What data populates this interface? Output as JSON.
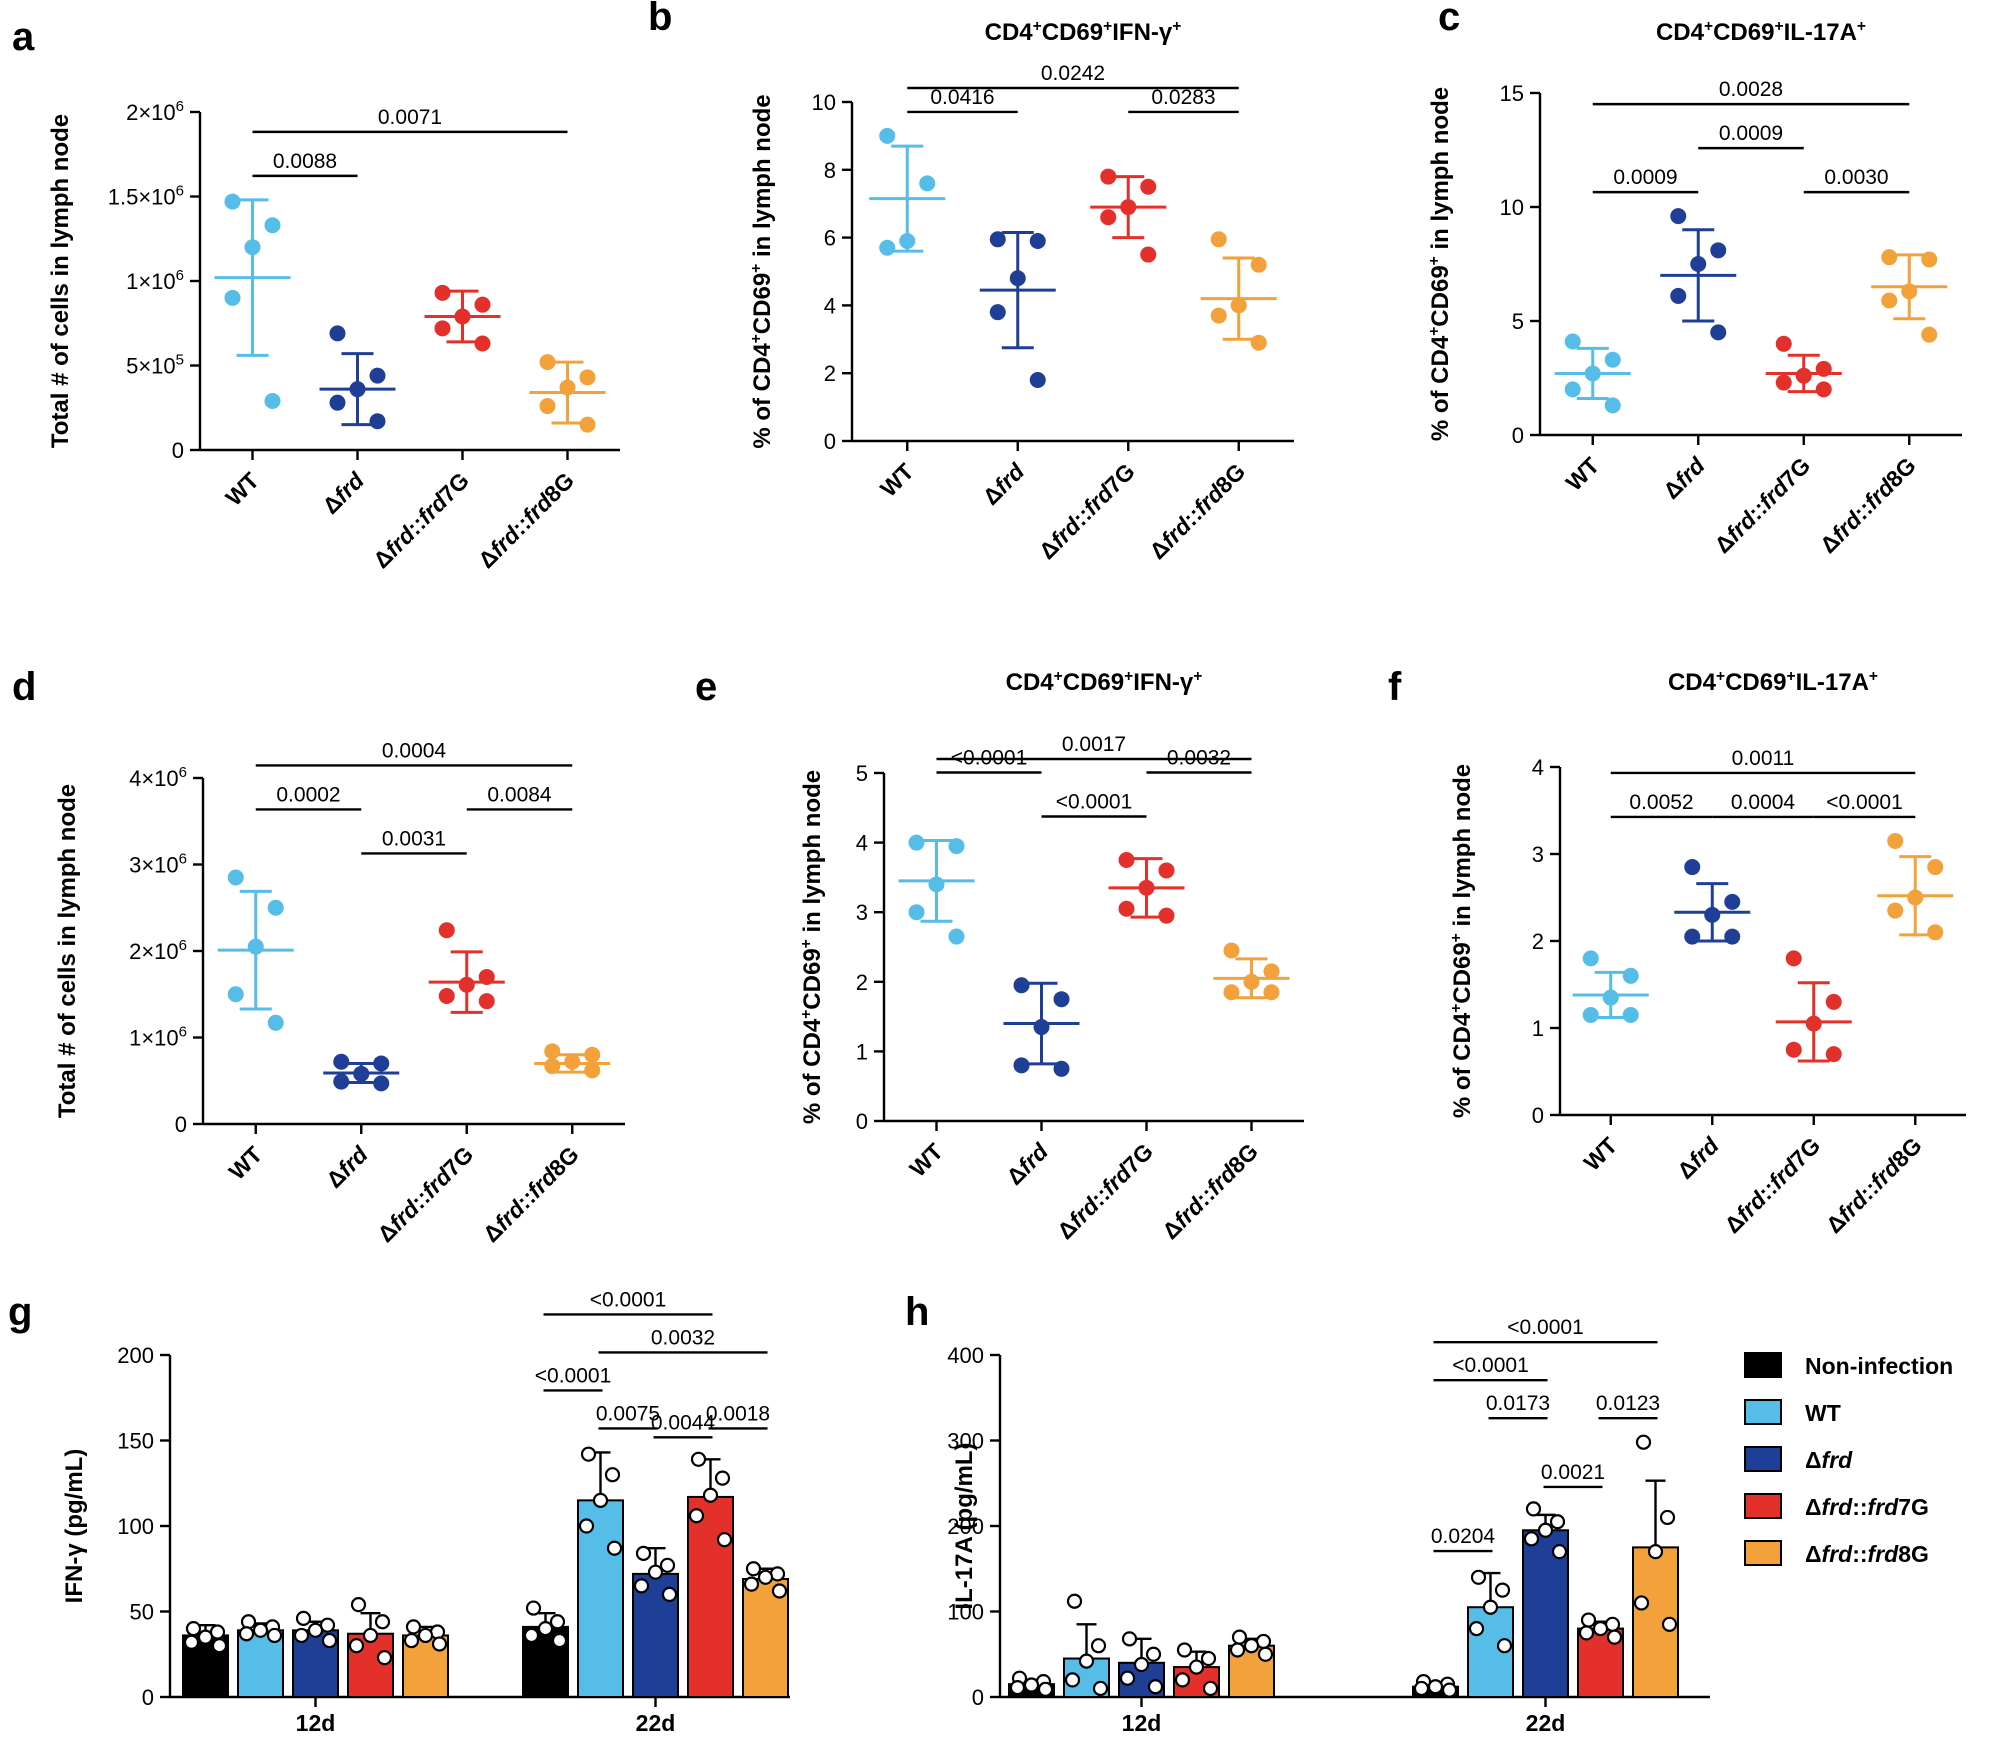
{
  "colors": {
    "WT": "#56bce8",
    "frd": "#1f3f96",
    "frd7G": "#e3302a",
    "frd8G": "#f3a23b",
    "Non-infection": "#000000"
  },
  "chart_data": [
    {
      "id": "a",
      "type": "scatter",
      "panel_label": "a",
      "title": "",
      "ylabel": "Total # of cells in lymph node",
      "ylim": [
        0,
        2000000
      ],
      "yticks": [
        0,
        500000,
        1000000,
        1500000,
        2000000
      ],
      "ytick_labels": [
        "0",
        "5×10⁵",
        "1×10⁶",
        "1.5×10⁶",
        "2×10⁶"
      ],
      "categories": [
        "WT",
        "Δfrd",
        "Δfrd::frd7G",
        "Δfrd::frd8G"
      ],
      "series": [
        {
          "name": "WT",
          "color": "#56bce8",
          "mean": 1020000,
          "sd": 460000,
          "points": [
            1470000,
            1330000,
            1200000,
            900000,
            290000
          ]
        },
        {
          "name": "Δfrd",
          "color": "#1f3f96",
          "mean": 360000,
          "sd": 210000,
          "points": [
            690000,
            440000,
            360000,
            280000,
            170000
          ]
        },
        {
          "name": "Δfrd::frd7G",
          "color": "#e3302a",
          "mean": 790000,
          "sd": 150000,
          "points": [
            930000,
            860000,
            790000,
            720000,
            630000
          ]
        },
        {
          "name": "Δfrd::frd8G",
          "color": "#f3a23b",
          "mean": 340000,
          "sd": 180000,
          "points": [
            520000,
            430000,
            370000,
            260000,
            150000
          ]
        }
      ],
      "comparisons": [
        {
          "from": 0,
          "to": 1,
          "p": "0.0088",
          "level": 1
        },
        {
          "from": 0,
          "to": 3,
          "p": "0.0071",
          "level": 2
        }
      ]
    },
    {
      "id": "b",
      "type": "scatter",
      "panel_label": "b",
      "title": "CD4⁺CD69⁺IFN-γ⁺",
      "ylabel": "% of CD4⁺CD69⁺ in lymph node",
      "ylim": [
        0,
        10
      ],
      "yticks": [
        0,
        2,
        4,
        6,
        8,
        10
      ],
      "ytick_labels": [
        "0",
        "2",
        "4",
        "6",
        "8",
        "10"
      ],
      "categories": [
        "WT",
        "Δfrd",
        "Δfrd::frd7G",
        "Δfrd::frd8G"
      ],
      "series": [
        {
          "name": "WT",
          "color": "#56bce8",
          "mean": 7.15,
          "sd": 1.55,
          "points": [
            9.0,
            7.6,
            5.9,
            5.7
          ]
        },
        {
          "name": "Δfrd",
          "color": "#1f3f96",
          "mean": 4.45,
          "sd": 1.7,
          "points": [
            5.95,
            5.9,
            4.8,
            3.8,
            1.8
          ]
        },
        {
          "name": "Δfrd::frd7G",
          "color": "#e3302a",
          "mean": 6.9,
          "sd": 0.9,
          "points": [
            7.8,
            7.5,
            6.9,
            6.6,
            5.5
          ]
        },
        {
          "name": "Δfrd::frd8G",
          "color": "#f3a23b",
          "mean": 4.2,
          "sd": 1.2,
          "points": [
            5.95,
            5.2,
            4.0,
            3.7,
            2.9
          ]
        }
      ],
      "comparisons": [
        {
          "from": 0,
          "to": 1,
          "p": "0.0416",
          "level": 1
        },
        {
          "from": 2,
          "to": 3,
          "p": "0.0283",
          "level": 1
        },
        {
          "from": 0,
          "to": 3,
          "p": "0.0242",
          "level": 2
        }
      ]
    },
    {
      "id": "c",
      "type": "scatter",
      "panel_label": "c",
      "title": "CD4⁺CD69⁺IL-17A⁺",
      "ylabel": "% of CD4⁺CD69⁺ in lymph node",
      "ylim": [
        0,
        15
      ],
      "yticks": [
        0,
        5,
        10,
        15
      ],
      "ytick_labels": [
        "0",
        "5",
        "10",
        "15"
      ],
      "categories": [
        "WT",
        "Δfrd",
        "Δfrd::frd7G",
        "Δfrd::frd8G"
      ],
      "series": [
        {
          "name": "WT",
          "color": "#56bce8",
          "mean": 2.7,
          "sd": 1.1,
          "points": [
            4.1,
            3.3,
            2.7,
            2.0,
            1.3
          ]
        },
        {
          "name": "Δfrd",
          "color": "#1f3f96",
          "mean": 7.0,
          "sd": 2.0,
          "points": [
            9.6,
            8.1,
            7.5,
            6.1,
            4.5
          ]
        },
        {
          "name": "Δfrd::frd7G",
          "color": "#e3302a",
          "mean": 2.7,
          "sd": 0.8,
          "points": [
            4.0,
            2.9,
            2.6,
            2.3,
            2.0
          ]
        },
        {
          "name": "Δfrd::frd8G",
          "color": "#f3a23b",
          "mean": 6.5,
          "sd": 1.4,
          "points": [
            7.8,
            7.7,
            6.3,
            5.9,
            4.4
          ]
        }
      ],
      "comparisons": [
        {
          "from": 0,
          "to": 1,
          "p": "0.0009",
          "level": 1
        },
        {
          "from": 1,
          "to": 2,
          "p": "0.0009",
          "level": 2
        },
        {
          "from": 2,
          "to": 3,
          "p": "0.0030",
          "level": 1
        },
        {
          "from": 0,
          "to": 3,
          "p": "0.0028",
          "level": 3
        }
      ]
    },
    {
      "id": "d",
      "type": "scatter",
      "panel_label": "d",
      "title": "",
      "ylabel": "Total # of cells in lymph node",
      "ylim": [
        0,
        4000000
      ],
      "yticks": [
        0,
        1000000,
        2000000,
        3000000,
        4000000
      ],
      "ytick_labels": [
        "0",
        "1×10⁶",
        "2×10⁶",
        "3×10⁶",
        "4×10⁶"
      ],
      "categories": [
        "WT",
        "Δfrd",
        "Δfrd::frd7G",
        "Δfrd::frd8G"
      ],
      "series": [
        {
          "name": "WT",
          "color": "#56bce8",
          "mean": 2010000,
          "sd": 680000,
          "points": [
            2850000,
            2500000,
            2050000,
            1500000,
            1170000
          ]
        },
        {
          "name": "Δfrd",
          "color": "#1f3f96",
          "mean": 590000,
          "sd": 110000,
          "points": [
            720000,
            700000,
            580000,
            490000,
            470000
          ]
        },
        {
          "name": "Δfrd::frd7G",
          "color": "#e3302a",
          "mean": 1640000,
          "sd": 350000,
          "points": [
            2240000,
            1700000,
            1610000,
            1480000,
            1420000
          ]
        },
        {
          "name": "Δfrd::frd8G",
          "color": "#f3a23b",
          "mean": 700000,
          "sd": 100000,
          "points": [
            840000,
            800000,
            720000,
            670000,
            620000
          ]
        }
      ],
      "comparisons": [
        {
          "from": 0,
          "to": 1,
          "p": "0.0002",
          "level": 2
        },
        {
          "from": 1,
          "to": 2,
          "p": "0.0031",
          "level": 1
        },
        {
          "from": 2,
          "to": 3,
          "p": "0.0084",
          "level": 2
        },
        {
          "from": 0,
          "to": 3,
          "p": "0.0004",
          "level": 3
        }
      ]
    },
    {
      "id": "e",
      "type": "scatter",
      "panel_label": "e",
      "title": "CD4⁺CD69⁺IFN-γ⁺",
      "ylabel": "% of CD4⁺CD69⁺ in lymph node",
      "ylim": [
        0,
        5
      ],
      "yticks": [
        0,
        1,
        2,
        3,
        4,
        5
      ],
      "ytick_labels": [
        "0",
        "1",
        "2",
        "3",
        "4",
        "5"
      ],
      "categories": [
        "WT",
        "Δfrd",
        "Δfrd::frd7G",
        "Δfrd::frd8G"
      ],
      "series": [
        {
          "name": "WT",
          "color": "#56bce8",
          "mean": 3.45,
          "sd": 0.58,
          "points": [
            4.0,
            3.95,
            3.4,
            3.0,
            2.65
          ]
        },
        {
          "name": "Δfrd",
          "color": "#1f3f96",
          "mean": 1.4,
          "sd": 0.58,
          "points": [
            1.95,
            1.75,
            1.35,
            0.8,
            0.75
          ]
        },
        {
          "name": "Δfrd::frd7G",
          "color": "#e3302a",
          "mean": 3.35,
          "sd": 0.42,
          "points": [
            3.75,
            3.6,
            3.35,
            3.05,
            2.95
          ]
        },
        {
          "name": "Δfrd::frd8G",
          "color": "#f3a23b",
          "mean": 2.05,
          "sd": 0.28,
          "points": [
            2.45,
            2.15,
            2.0,
            1.85,
            1.85
          ]
        }
      ],
      "comparisons": [
        {
          "from": 0,
          "to": 1,
          "p": "<0.0001",
          "level": 2
        },
        {
          "from": 1,
          "to": 2,
          "p": "<0.0001",
          "level": 1
        },
        {
          "from": 2,
          "to": 3,
          "p": "0.0032",
          "level": 2
        },
        {
          "from": 0,
          "to": 3,
          "p": "0.0017",
          "level": 3
        }
      ]
    },
    {
      "id": "f",
      "type": "scatter",
      "panel_label": "f",
      "title": "CD4⁺CD69⁺IL-17A⁺",
      "ylabel": "% of CD4⁺CD69⁺ in lymph node",
      "ylim": [
        0,
        4
      ],
      "yticks": [
        0,
        1,
        2,
        3,
        4
      ],
      "ytick_labels": [
        "0",
        "1",
        "2",
        "3",
        "4"
      ],
      "categories": [
        "WT",
        "Δfrd",
        "Δfrd::frd7G",
        "Δfrd::frd8G"
      ],
      "series": [
        {
          "name": "WT",
          "color": "#56bce8",
          "mean": 1.38,
          "sd": 0.26,
          "points": [
            1.8,
            1.6,
            1.35,
            1.15,
            1.15
          ]
        },
        {
          "name": "Δfrd",
          "color": "#1f3f96",
          "mean": 2.33,
          "sd": 0.33,
          "points": [
            2.85,
            2.45,
            2.3,
            2.05,
            2.05
          ]
        },
        {
          "name": "Δfrd::frd7G",
          "color": "#e3302a",
          "mean": 1.07,
          "sd": 0.45,
          "points": [
            1.8,
            1.3,
            1.05,
            0.75,
            0.7
          ]
        },
        {
          "name": "Δfrd::frd8G",
          "color": "#f3a23b",
          "mean": 2.52,
          "sd": 0.45,
          "points": [
            3.15,
            2.85,
            2.5,
            2.35,
            2.1
          ]
        }
      ],
      "comparisons": [
        {
          "from": 0,
          "to": 1,
          "p": "0.0052",
          "level": 1
        },
        {
          "from": 1,
          "to": 2,
          "p": "0.0004",
          "level": 1
        },
        {
          "from": 2,
          "to": 3,
          "p": "<0.0001",
          "level": 1
        },
        {
          "from": 0,
          "to": 3,
          "p": "0.0011",
          "level": 2
        }
      ]
    },
    {
      "id": "g",
      "type": "bar",
      "panel_label": "g",
      "title": "",
      "ylabel": "IFN-γ (pg/mL)",
      "ylim": [
        0,
        200
      ],
      "yticks": [
        0,
        50,
        100,
        150,
        200
      ],
      "ytick_labels": [
        "0",
        "50",
        "100",
        "150",
        "200"
      ],
      "groups": [
        "12d",
        "22d"
      ],
      "series_names": [
        "Non-infection",
        "WT",
        "Δfrd",
        "Δfrd::frd7G",
        "Δfrd::frd8G"
      ],
      "colors": [
        "#000000",
        "#56bce8",
        "#1f3f96",
        "#e3302a",
        "#f3a23b"
      ],
      "bars": [
        [
          {
            "mean": 36,
            "sd": 6,
            "points": [
              40,
              38,
              35,
              32,
              30
            ]
          },
          {
            "mean": 39,
            "sd": 4,
            "points": [
              44,
              41,
              39,
              37,
              36
            ]
          },
          {
            "mean": 39,
            "sd": 5,
            "points": [
              46,
              42,
              39,
              36,
              33
            ]
          },
          {
            "mean": 37,
            "sd": 12,
            "points": [
              54,
              44,
              36,
              30,
              23
            ]
          },
          {
            "mean": 36,
            "sd": 5,
            "points": [
              41,
              38,
              36,
              33,
              31
            ]
          }
        ],
        [
          {
            "mean": 41,
            "sd": 8,
            "points": [
              52,
              44,
              40,
              36,
              33
            ]
          },
          {
            "mean": 115,
            "sd": 28,
            "points": [
              142,
              130,
              115,
              100,
              87
            ]
          },
          {
            "mean": 72,
            "sd": 15,
            "points": [
              84,
              77,
              73,
              65,
              60
            ]
          },
          {
            "mean": 117,
            "sd": 22,
            "points": [
              139,
              128,
              118,
              106,
              92
            ]
          },
          {
            "mean": 69,
            "sd": 6,
            "points": [
              75,
              72,
              70,
              66,
              62
            ]
          }
        ]
      ],
      "comparisons": [
        {
          "group": 1,
          "from": 0,
          "to": 1,
          "p": "<0.0001",
          "level": 2
        },
        {
          "group": 1,
          "from": 1,
          "to": 2,
          "p": "0.0075",
          "level": 1
        },
        {
          "group": 1,
          "from": 2,
          "to": 3,
          "p": "0.0044",
          "level": 0
        },
        {
          "group": 1,
          "from": 3,
          "to": 4,
          "p": "0.0018",
          "level": 1
        },
        {
          "group": 1,
          "from": 1,
          "to": 4,
          "p": "0.0032",
          "level": 3
        },
        {
          "group": 1,
          "from": 0,
          "to": 3,
          "p": "<0.0001",
          "level": 4
        }
      ]
    },
    {
      "id": "h",
      "type": "bar",
      "panel_label": "h",
      "title": "",
      "ylabel": "IL-17A (pg/mL)",
      "ylim": [
        0,
        400
      ],
      "yticks": [
        0,
        100,
        200,
        300,
        400
      ],
      "ytick_labels": [
        "0",
        "100",
        "200",
        "300",
        "400"
      ],
      "groups": [
        "12d",
        "22d"
      ],
      "series_names": [
        "Non-infection",
        "WT",
        "Δfrd",
        "Δfrd::frd7G",
        "Δfrd::frd8G"
      ],
      "colors": [
        "#000000",
        "#56bce8",
        "#1f3f96",
        "#e3302a",
        "#f3a23b"
      ],
      "bars": [
        [
          {
            "mean": 15,
            "sd": 5,
            "points": [
              22,
              18,
              14,
              11,
              9
            ]
          },
          {
            "mean": 45,
            "sd": 40,
            "points": [
              112,
              60,
              42,
              20,
              10
            ]
          },
          {
            "mean": 40,
            "sd": 28,
            "points": [
              68,
              50,
              38,
              22,
              12
            ]
          },
          {
            "mean": 35,
            "sd": 18,
            "points": [
              55,
              45,
              35,
              20,
              10
            ]
          },
          {
            "mean": 60,
            "sd": 8,
            "points": [
              70,
              65,
              60,
              55,
              50
            ]
          }
        ],
        [
          {
            "mean": 12,
            "sd": 4,
            "points": [
              18,
              15,
              12,
              10,
              8
            ]
          },
          {
            "mean": 105,
            "sd": 40,
            "points": [
              140,
              125,
              105,
              80,
              60
            ]
          },
          {
            "mean": 195,
            "sd": 18,
            "points": [
              220,
              205,
              195,
              185,
              170
            ]
          },
          {
            "mean": 80,
            "sd": 8,
            "points": [
              90,
              85,
              80,
              75,
              70
            ]
          },
          {
            "mean": 175,
            "sd": 78,
            "points": [
              298,
              210,
              170,
              110,
              85
            ]
          }
        ]
      ],
      "comparisons": [
        {
          "group": 1,
          "from": 0,
          "to": 1,
          "p": "0.0204",
          "level": 0
        },
        {
          "group": 1,
          "from": 1,
          "to": 2,
          "p": "0.0173",
          "level": 1
        },
        {
          "group": 1,
          "from": 2,
          "to": 3,
          "p": "0.0021",
          "level": 0
        },
        {
          "group": 1,
          "from": 3,
          "to": 4,
          "p": "0.0123",
          "level": 1
        },
        {
          "group": 1,
          "from": 0,
          "to": 2,
          "p": "<0.0001",
          "level": 2
        },
        {
          "group": 1,
          "from": 0,
          "to": 4,
          "p": "<0.0001",
          "level": 3
        }
      ],
      "legend": {
        "position": "right",
        "entries": [
          "Non-infection",
          "WT",
          "Δfrd",
          "Δfrd::frd7G",
          "Δfrd::frd8G"
        ]
      }
    }
  ]
}
